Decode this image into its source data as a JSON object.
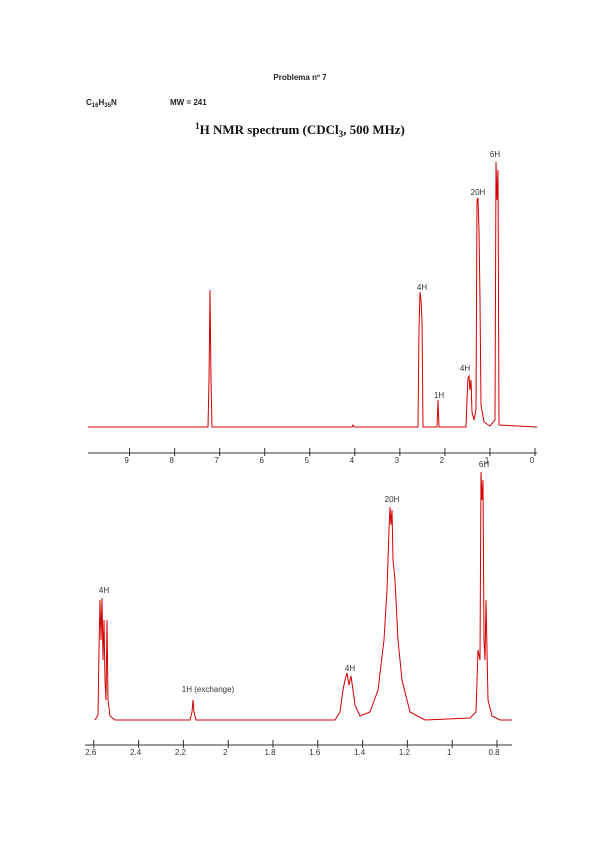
{
  "header": {
    "problem": "Problema nº 7",
    "formula": [
      "C",
      "16",
      "H",
      "35",
      "N"
    ],
    "mw": "MW = 241",
    "title": {
      "sup": "1",
      "main": "H NMR spectrum (CDCl",
      "sub": "3",
      "rest": ", 500 MHz)"
    }
  },
  "spectrum_full": {
    "ticks": [
      9,
      8,
      7,
      6,
      5,
      4,
      3,
      2,
      1,
      0
    ],
    "peak_labels": [
      "4H",
      "1H",
      "4H",
      "20H",
      "6H"
    ]
  },
  "spectrum_zoom": {
    "ticks": [
      2.6,
      2.4,
      2.2,
      2,
      1.8,
      1.6,
      1.4,
      1.2,
      1,
      0.8
    ],
    "peak_labels": [
      "4H",
      "1H (exchange)",
      "4H",
      "20H",
      "6H"
    ]
  }
}
